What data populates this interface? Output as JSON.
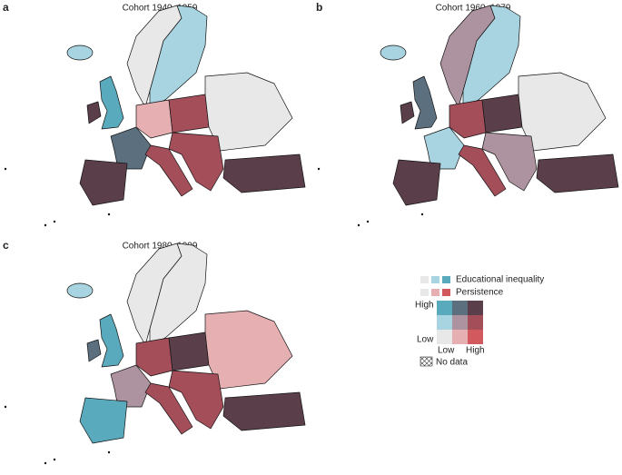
{
  "panels": [
    {
      "label": "a",
      "title": "Cohort 1940–1959"
    },
    {
      "label": "b",
      "title": "Cohort 1960–1979"
    },
    {
      "label": "c",
      "title": "Cohort 1980–1999"
    }
  ],
  "legend": {
    "educational_inequality": "Educational inequality",
    "persistence": "Persistence",
    "y_high": "High",
    "y_low": "Low",
    "x_low": "Low",
    "x_high": "High",
    "no_data": "No data"
  }
}
